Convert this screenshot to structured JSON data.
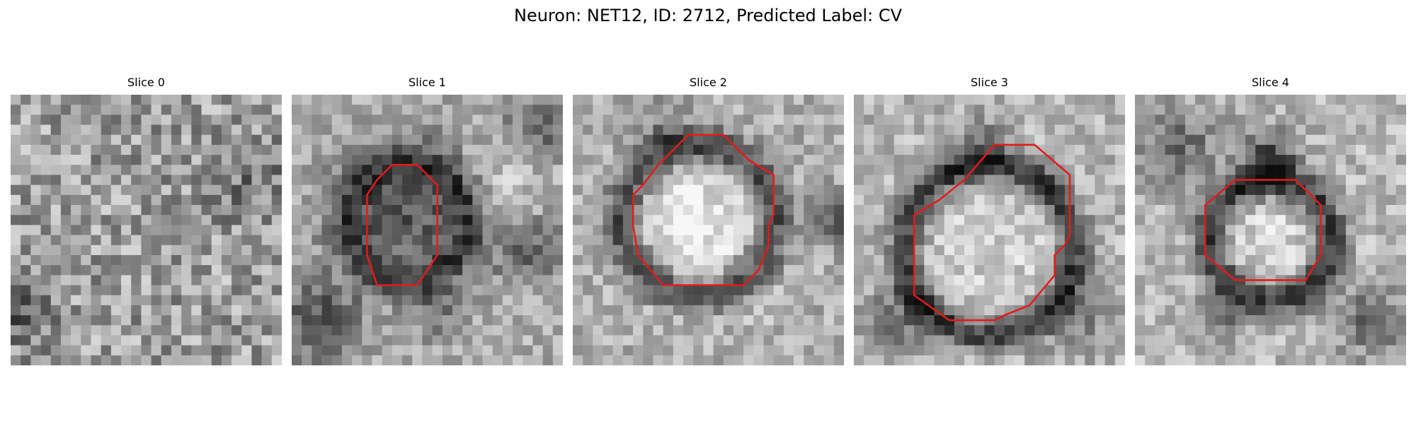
{
  "figure": {
    "title": "Neuron: NET12, ID: 2712, Predicted Label: CV",
    "panels": [
      {
        "title": "Slice 0",
        "contour_color": "#e41a1c",
        "has_contour": false
      },
      {
        "title": "Slice 1",
        "contour_color": "#e41a1c",
        "has_contour": true
      },
      {
        "title": "Slice 2",
        "contour_color": "#e41a1c",
        "has_contour": true
      },
      {
        "title": "Slice 3",
        "contour_color": "#e41a1c",
        "has_contour": true
      },
      {
        "title": "Slice 4",
        "contour_color": "#e41a1c",
        "has_contour": true
      }
    ]
  }
}
